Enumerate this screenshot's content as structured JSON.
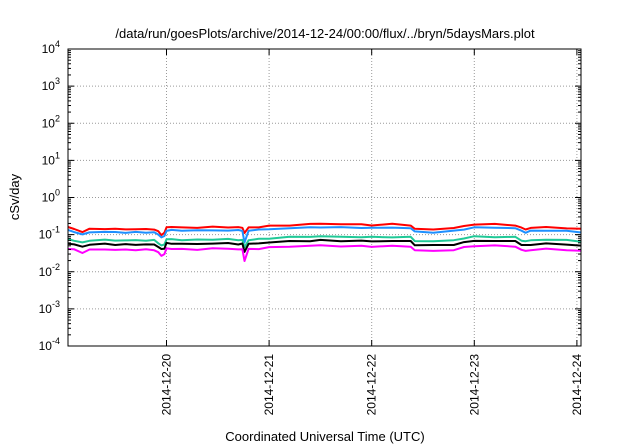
{
  "chart_data": {
    "type": "line",
    "title": "/data/run/goesPlots/archive/2014-12-24/00:00/flux/../bryn/5daysMars.plot",
    "xlabel": "Coordinated Universal Time (UTC)",
    "ylabel": "cSv/day",
    "yscale": "log",
    "ylim": [
      0.0001,
      10000
    ],
    "xlim": [
      -0.96,
      4.04
    ],
    "grid": true,
    "legend": "none",
    "y_ticks": [
      {
        "base": "10",
        "exp": "-4"
      },
      {
        "base": "10",
        "exp": "-3"
      },
      {
        "base": "10",
        "exp": "-2"
      },
      {
        "base": "10",
        "exp": "-1"
      },
      {
        "base": "10",
        "exp": "0"
      },
      {
        "base": "10",
        "exp": "1"
      },
      {
        "base": "10",
        "exp": "2"
      },
      {
        "base": "10",
        "exp": "3"
      },
      {
        "base": "10",
        "exp": "4"
      }
    ],
    "x_ticks": [
      {
        "pos": 0,
        "label": "2014-12-20"
      },
      {
        "pos": 1,
        "label": "2014-12-21"
      },
      {
        "pos": 2,
        "label": "2014-12-22"
      },
      {
        "pos": 3,
        "label": "2014-12-23"
      },
      {
        "pos": 4,
        "label": "2014-12-24"
      }
    ],
    "series": [
      {
        "color": "#ff0000",
        "x": [
          -0.96,
          -0.9,
          -0.82,
          -0.75,
          -0.6,
          -0.5,
          -0.4,
          -0.3,
          -0.2,
          -0.12,
          -0.08,
          -0.05,
          -0.02,
          0.0,
          0.05,
          0.15,
          0.3,
          0.45,
          0.6,
          0.7,
          0.74,
          0.76,
          0.8,
          0.9,
          1.0,
          1.2,
          1.4,
          1.5,
          1.7,
          1.9,
          2.0,
          2.2,
          2.38,
          2.42,
          2.6,
          2.8,
          2.9,
          3.0,
          3.2,
          3.4,
          3.46,
          3.5,
          3.55,
          3.7,
          3.9,
          4.04
        ],
        "y": [
          0.16,
          0.14,
          0.12,
          0.14,
          0.145,
          0.14,
          0.14,
          0.14,
          0.14,
          0.14,
          0.12,
          0.1,
          0.11,
          0.16,
          0.16,
          0.155,
          0.155,
          0.16,
          0.16,
          0.155,
          0.155,
          0.11,
          0.155,
          0.16,
          0.17,
          0.18,
          0.19,
          0.2,
          0.19,
          0.19,
          0.18,
          0.19,
          0.18,
          0.14,
          0.14,
          0.15,
          0.17,
          0.19,
          0.19,
          0.18,
          0.15,
          0.14,
          0.15,
          0.16,
          0.15,
          0.14
        ]
      },
      {
        "color": "#1e90ff",
        "x": [
          -0.96,
          -0.9,
          -0.82,
          -0.75,
          -0.6,
          -0.5,
          -0.4,
          -0.3,
          -0.2,
          -0.12,
          -0.08,
          -0.05,
          -0.02,
          0.0,
          0.05,
          0.15,
          0.3,
          0.45,
          0.6,
          0.7,
          0.74,
          0.76,
          0.8,
          0.9,
          1.0,
          1.2,
          1.4,
          1.5,
          1.7,
          1.9,
          2.0,
          2.2,
          2.38,
          2.42,
          2.6,
          2.8,
          2.9,
          3.0,
          3.2,
          3.4,
          3.46,
          3.5,
          3.55,
          3.7,
          3.9,
          4.04
        ],
        "y": [
          0.13,
          0.12,
          0.1,
          0.115,
          0.12,
          0.115,
          0.115,
          0.115,
          0.115,
          0.115,
          0.1,
          0.085,
          0.09,
          0.13,
          0.13,
          0.13,
          0.13,
          0.13,
          0.13,
          0.13,
          0.13,
          0.06,
          0.13,
          0.135,
          0.14,
          0.15,
          0.155,
          0.16,
          0.155,
          0.155,
          0.15,
          0.155,
          0.15,
          0.12,
          0.115,
          0.125,
          0.14,
          0.155,
          0.155,
          0.15,
          0.125,
          0.115,
          0.125,
          0.13,
          0.125,
          0.115
        ]
      },
      {
        "color": "#20c997",
        "x": [
          -0.96,
          -0.9,
          -0.82,
          -0.75,
          -0.6,
          -0.5,
          -0.4,
          -0.3,
          -0.2,
          -0.12,
          -0.08,
          -0.05,
          -0.02,
          0.0,
          0.05,
          0.15,
          0.3,
          0.45,
          0.6,
          0.7,
          0.74,
          0.76,
          0.8,
          0.9,
          1.0,
          1.2,
          1.4,
          1.5,
          1.7,
          1.9,
          2.0,
          2.2,
          2.38,
          2.42,
          2.6,
          2.8,
          2.9,
          3.0,
          3.2,
          3.4,
          3.46,
          3.5,
          3.55,
          3.7,
          3.9,
          4.04
        ],
        "y": [
          0.075,
          0.07,
          0.06,
          0.07,
          0.072,
          0.07,
          0.07,
          0.07,
          0.07,
          0.07,
          0.06,
          0.05,
          0.055,
          0.075,
          0.075,
          0.072,
          0.072,
          0.075,
          0.075,
          0.072,
          0.072,
          0.045,
          0.072,
          0.075,
          0.08,
          0.085,
          0.088,
          0.09,
          0.087,
          0.087,
          0.085,
          0.087,
          0.085,
          0.068,
          0.066,
          0.07,
          0.08,
          0.088,
          0.088,
          0.085,
          0.07,
          0.066,
          0.07,
          0.074,
          0.07,
          0.066
        ]
      },
      {
        "color": "#000000",
        "x": [
          -0.96,
          -0.9,
          -0.82,
          -0.75,
          -0.6,
          -0.5,
          -0.4,
          -0.3,
          -0.2,
          -0.12,
          -0.08,
          -0.05,
          -0.02,
          0.0,
          0.05,
          0.15,
          0.3,
          0.45,
          0.6,
          0.7,
          0.74,
          0.76,
          0.8,
          0.9,
          1.0,
          1.2,
          1.4,
          1.5,
          1.7,
          1.9,
          2.0,
          2.2,
          2.38,
          2.42,
          2.6,
          2.8,
          2.9,
          3.0,
          3.2,
          3.4,
          3.46,
          3.5,
          3.55,
          3.7,
          3.9,
          4.04
        ],
        "y": [
          0.058,
          0.054,
          0.047,
          0.054,
          0.056,
          0.054,
          0.054,
          0.054,
          0.054,
          0.054,
          0.047,
          0.04,
          0.043,
          0.058,
          0.058,
          0.056,
          0.056,
          0.058,
          0.058,
          0.056,
          0.056,
          0.035,
          0.056,
          0.058,
          0.062,
          0.066,
          0.068,
          0.07,
          0.068,
          0.068,
          0.066,
          0.068,
          0.066,
          0.053,
          0.051,
          0.054,
          0.062,
          0.068,
          0.068,
          0.066,
          0.054,
          0.051,
          0.054,
          0.057,
          0.054,
          0.051
        ]
      },
      {
        "color": "#ff00ff",
        "x": [
          -0.96,
          -0.9,
          -0.82,
          -0.75,
          -0.6,
          -0.5,
          -0.4,
          -0.3,
          -0.2,
          -0.12,
          -0.08,
          -0.05,
          -0.02,
          0.0,
          0.05,
          0.15,
          0.3,
          0.45,
          0.6,
          0.7,
          0.74,
          0.76,
          0.8,
          0.9,
          1.0,
          1.2,
          1.4,
          1.5,
          1.7,
          1.9,
          2.0,
          2.2,
          2.38,
          2.42,
          2.6,
          2.8,
          2.9,
          3.0,
          3.2,
          3.4,
          3.46,
          3.5,
          3.55,
          3.7,
          3.9,
          4.04
        ],
        "y": [
          0.042,
          0.039,
          0.033,
          0.039,
          0.04,
          0.039,
          0.039,
          0.039,
          0.039,
          0.039,
          0.033,
          0.027,
          0.03,
          0.042,
          0.042,
          0.04,
          0.04,
          0.042,
          0.042,
          0.04,
          0.04,
          0.02,
          0.04,
          0.042,
          0.045,
          0.048,
          0.05,
          0.051,
          0.049,
          0.049,
          0.048,
          0.049,
          0.048,
          0.038,
          0.036,
          0.039,
          0.045,
          0.05,
          0.05,
          0.048,
          0.039,
          0.036,
          0.039,
          0.041,
          0.039,
          0.036
        ]
      }
    ]
  }
}
